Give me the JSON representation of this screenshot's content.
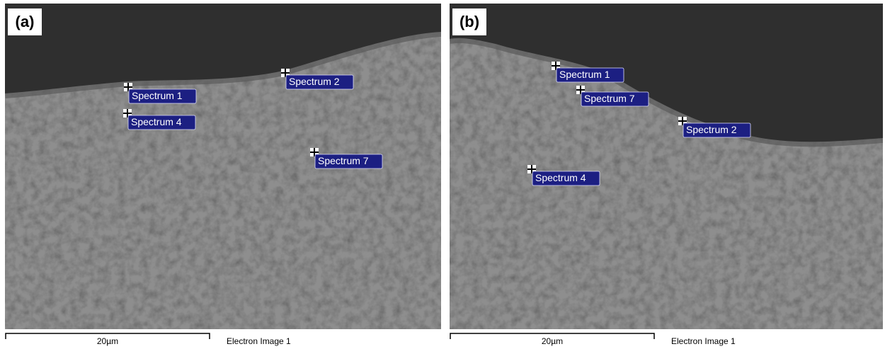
{
  "panels": [
    {
      "label": "(a)",
      "spectra": [
        "Spectrum 1",
        "Spectrum 4",
        "Spectrum 2",
        "Spectrum 7"
      ],
      "scale_bar": "20µm",
      "caption": "Electron Image 1"
    },
    {
      "label": "(b)",
      "spectra": [
        "Spectrum 1",
        "Spectrum 7",
        "Spectrum 2",
        "Spectrum 4"
      ],
      "scale_bar": "20µm",
      "caption": "Electron Image 1"
    }
  ]
}
